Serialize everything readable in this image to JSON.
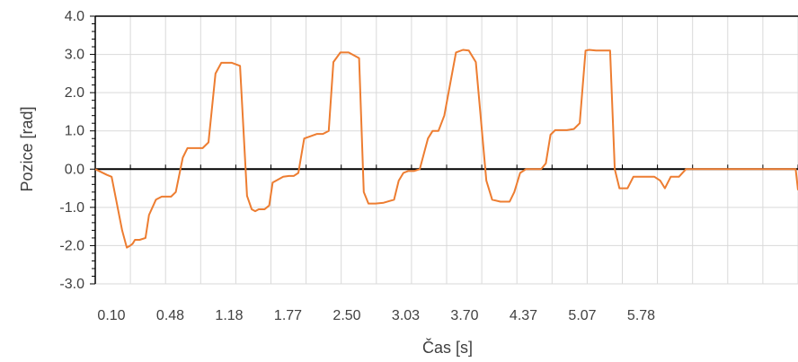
{
  "chart_data": {
    "type": "line",
    "title": "",
    "xlabel": "Čas [s]",
    "ylabel": "Pozice [rad]",
    "ylim": [
      -3.0,
      4.0
    ],
    "xlim": [
      0.1,
      6.12
    ],
    "x_tick_labels": [
      "0.10",
      "0.48",
      "1.18",
      "1.77",
      "2.50",
      "3.03",
      "3.70",
      "4.37",
      "5.07",
      "5.78"
    ],
    "y_tick_labels": [
      "4.0",
      "3.0",
      "2.0",
      "1.0",
      "0.0",
      "-1.0",
      "-2.0",
      "-3.0"
    ],
    "grid": true,
    "legend": "none",
    "colors": {
      "series": "#ED7D31",
      "grid": "#D9D9D9",
      "axis": "#000000"
    },
    "series": [
      {
        "name": "",
        "x": [
          0.1,
          0.2,
          0.24,
          0.33,
          0.37,
          0.4,
          0.42,
          0.44,
          0.46,
          0.48,
          0.53,
          0.56,
          0.62,
          0.67,
          0.71,
          0.75,
          0.79,
          0.85,
          0.89,
          0.94,
          1.02,
          1.07,
          1.13,
          1.18,
          1.22,
          1.27,
          1.34,
          1.4,
          1.44,
          1.47,
          1.5,
          1.55,
          1.59,
          1.62,
          1.71,
          1.76,
          1.8,
          1.84,
          1.89,
          2.0,
          2.02,
          2.05,
          2.1,
          2.14,
          2.2,
          2.27,
          2.36,
          2.4,
          2.44,
          2.5,
          2.57,
          2.66,
          2.7,
          2.74,
          2.78,
          2.83,
          2.88,
          2.95,
          2.99,
          3.02,
          3.04,
          3.09,
          3.19,
          3.25,
          3.3,
          3.36,
          3.45,
          3.5,
          3.57,
          3.62,
          3.65,
          3.69,
          3.74,
          3.79,
          3.86,
          3.92,
          3.96,
          4.0,
          4.04,
          4.14,
          4.2,
          4.25,
          4.3,
          4.33,
          4.39,
          4.51,
          4.55,
          4.59,
          4.66,
          4.71,
          4.75,
          4.8,
          4.89,
          4.94,
          4.98,
          5.03,
          5.1,
          5.16,
          5.21,
          5.25,
          5.3,
          5.34,
          5.39,
          5.47,
          5.53,
          5.59,
          5.64,
          5.68,
          5.8,
          5.84,
          5.87,
          5.92,
          5.94,
          6.02,
          6.1,
          6.12
        ],
        "y": [
          0.0,
          -0.15,
          -0.2,
          -1.6,
          -2.05,
          -2.0,
          -1.95,
          -1.85,
          -1.85,
          -1.85,
          -1.8,
          -1.2,
          -0.8,
          -0.72,
          -0.72,
          -0.72,
          -0.6,
          0.3,
          0.55,
          0.55,
          0.55,
          0.7,
          2.5,
          2.78,
          2.78,
          2.78,
          2.7,
          -0.7,
          -1.05,
          -1.1,
          -1.05,
          -1.05,
          -0.95,
          -0.35,
          -0.2,
          -0.18,
          -0.18,
          -0.1,
          0.8,
          0.92,
          0.92,
          0.92,
          1.0,
          2.8,
          3.05,
          3.05,
          2.9,
          -0.6,
          -0.9,
          -0.9,
          -0.88,
          -0.8,
          -0.3,
          -0.1,
          -0.05,
          -0.05,
          0.0,
          0.8,
          1.0,
          1.0,
          1.0,
          1.4,
          3.05,
          3.12,
          3.1,
          2.8,
          -0.3,
          -0.8,
          -0.85,
          -0.85,
          -0.85,
          -0.6,
          -0.1,
          0.0,
          0.0,
          0.0,
          0.15,
          0.9,
          1.02,
          1.02,
          1.05,
          1.2,
          3.1,
          3.12,
          3.1,
          3.1,
          0.0,
          -0.5,
          -0.5,
          -0.2,
          -0.2,
          -0.2,
          -0.2,
          -0.3,
          -0.5,
          -0.2,
          -0.2,
          0.0,
          0.0,
          0.0,
          0.0,
          0.0,
          0.0,
          0.0,
          0.0,
          0.0,
          0.0,
          0.0,
          0.0,
          0.0,
          0.0,
          0.0,
          0.0,
          0.0,
          0.0,
          -0.55
        ]
      }
    ]
  }
}
